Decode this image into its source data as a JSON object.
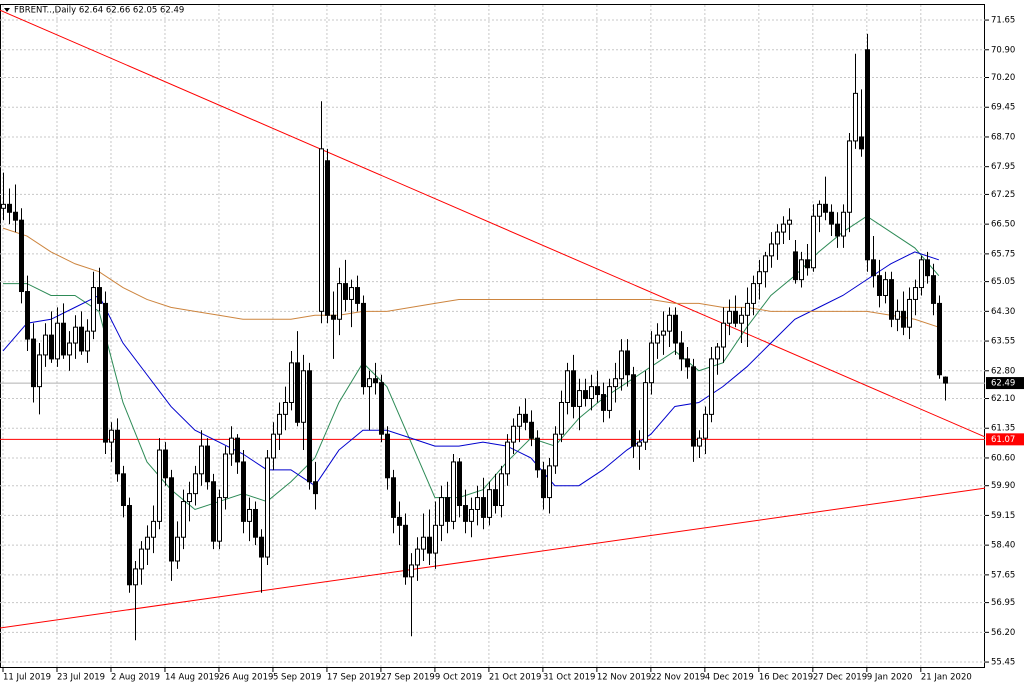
{
  "chart_data": {
    "type": "candlestick",
    "title": "FBRENT..,Daily  62.64 62.66 62.05 62.49",
    "ylim": [
      55.3,
      72.03
    ],
    "yticks": [
      71.65,
      {
        "value": 70.9,
        "label": "70.90"
      },
      {
        "value": 70.2,
        "label": "70.20"
      },
      69.45,
      {
        "value": 68.7,
        "label": "68.70"
      },
      67.95,
      67.25,
      {
        "value": 66.5,
        "label": "66.50"
      },
      65.75,
      65.05,
      {
        "value": 64.3,
        "label": "64.30"
      },
      63.55,
      {
        "value": 62.8,
        "label": "62.80"
      },
      {
        "value": 62.1,
        "label": "62.10"
      },
      61.35,
      {
        "value": 60.6,
        "label": "60.60"
      },
      {
        "value": 59.9,
        "label": "59.90"
      },
      59.15,
      {
        "value": 58.4,
        "label": "58.40"
      },
      57.65,
      56.95,
      {
        "value": 56.2,
        "label": "56.20"
      },
      55.45
    ],
    "xlim": [
      -0.5,
      163.7
    ],
    "xticks": [
      {
        "value": 0,
        "label": "11 Jul 2019"
      },
      {
        "value": 9,
        "label": "23 Jul 2019"
      },
      {
        "value": 18,
        "label": "2 Aug 2019"
      },
      {
        "value": 27,
        "label": "14 Aug 2019"
      },
      {
        "value": 36,
        "label": "26 Aug 2019"
      },
      {
        "value": 45,
        "label": "5 Sep 2019"
      },
      {
        "value": 54,
        "label": "17 Sep 2019"
      },
      {
        "value": 63,
        "label": "27 Sep 2019"
      },
      {
        "value": 72,
        "label": "9 Oct 2019"
      },
      {
        "value": 81,
        "label": "21 Oct 2019"
      },
      {
        "value": 90,
        "label": "31 Oct 2019"
      },
      {
        "value": 99,
        "label": "12 Nov 2019"
      },
      {
        "value": 108,
        "label": "22 Nov 2019"
      },
      {
        "value": 117,
        "label": "4 Dec 2019"
      },
      {
        "value": 126,
        "label": "16 Dec 2019"
      },
      {
        "value": 135,
        "label": "27 Dec 2019"
      },
      {
        "value": 144,
        "label": "9 Jan 2020"
      },
      {
        "value": 153,
        "label": "21 Jan 2020"
      }
    ],
    "grid": true,
    "ohlc": [
      [
        66.9,
        67.8,
        66.6,
        67.0
      ],
      [
        67.0,
        67.4,
        66.5,
        66.8
      ],
      [
        66.8,
        67.5,
        66.3,
        66.6
      ],
      [
        66.6,
        66.9,
        64.5,
        64.8
      ],
      [
        64.8,
        65.2,
        63.3,
        63.6
      ],
      [
        63.6,
        64.0,
        62.0,
        62.4
      ],
      [
        62.4,
        63.5,
        61.7,
        63.2
      ],
      [
        63.2,
        64.0,
        62.9,
        63.7
      ],
      [
        63.7,
        64.3,
        63.0,
        63.1
      ],
      [
        63.1,
        64.4,
        62.9,
        64.0
      ],
      [
        64.0,
        64.5,
        63.1,
        63.2
      ],
      [
        63.2,
        63.8,
        62.8,
        63.5
      ],
      [
        63.5,
        64.2,
        63.1,
        63.9
      ],
      [
        63.9,
        64.3,
        63.2,
        63.3
      ],
      [
        63.3,
        64.1,
        63.0,
        63.8
      ],
      [
        63.8,
        65.3,
        63.6,
        64.9
      ],
      [
        64.9,
        65.4,
        64.3,
        64.5
      ],
      [
        64.5,
        64.8,
        60.7,
        61.0
      ],
      [
        61.0,
        61.5,
        60.5,
        61.3
      ],
      [
        61.3,
        61.6,
        60.0,
        60.2
      ],
      [
        60.2,
        60.4,
        59.1,
        59.4
      ],
      [
        59.4,
        59.6,
        57.2,
        57.4
      ],
      [
        57.4,
        58.0,
        56.0,
        57.8
      ],
      [
        57.8,
        58.5,
        57.4,
        58.3
      ],
      [
        58.3,
        58.9,
        57.9,
        58.6
      ],
      [
        58.6,
        59.4,
        58.2,
        59.0
      ],
      [
        59.0,
        61.1,
        58.8,
        60.8
      ],
      [
        60.8,
        61.0,
        59.9,
        60.1
      ],
      [
        60.1,
        60.3,
        57.5,
        58.0
      ],
      [
        58.0,
        59.0,
        57.8,
        58.6
      ],
      [
        58.6,
        59.8,
        58.3,
        59.5
      ],
      [
        59.5,
        60.0,
        59.0,
        59.7
      ],
      [
        59.7,
        60.4,
        59.4,
        60.2
      ],
      [
        60.2,
        61.3,
        59.9,
        60.9
      ],
      [
        60.9,
        61.1,
        59.8,
        60.0
      ],
      [
        60.0,
        60.2,
        58.3,
        58.5
      ],
      [
        58.5,
        59.8,
        58.3,
        59.6
      ],
      [
        59.6,
        60.9,
        59.3,
        60.7
      ],
      [
        60.7,
        61.4,
        60.4,
        61.1
      ],
      [
        61.1,
        61.2,
        60.2,
        60.5
      ],
      [
        60.5,
        60.8,
        58.7,
        59.0
      ],
      [
        59.0,
        59.6,
        58.5,
        59.3
      ],
      [
        59.3,
        59.5,
        58.4,
        58.6
      ],
      [
        58.6,
        58.8,
        57.2,
        58.1
      ],
      [
        58.1,
        60.8,
        57.9,
        60.6
      ],
      [
        60.6,
        61.5,
        60.3,
        61.2
      ],
      [
        61.2,
        62.0,
        60.8,
        61.7
      ],
      [
        61.7,
        62.4,
        61.3,
        62.0
      ],
      [
        62.0,
        63.3,
        61.8,
        63.0
      ],
      [
        63.0,
        63.8,
        61.4,
        61.5
      ],
      [
        61.5,
        63.2,
        60.8,
        62.8
      ],
      [
        62.8,
        63.0,
        59.8,
        60.0
      ],
      [
        60.0,
        60.5,
        59.3,
        59.7
      ],
      [
        64.3,
        69.6,
        64.0,
        68.4
      ],
      [
        68.1,
        68.4,
        64.0,
        64.2
      ],
      [
        64.2,
        64.8,
        63.1,
        64.1
      ],
      [
        64.1,
        65.4,
        63.7,
        65.0
      ],
      [
        65.0,
        65.6,
        64.3,
        64.6
      ],
      [
        64.6,
        65.1,
        63.9,
        64.9
      ],
      [
        64.9,
        65.2,
        64.3,
        64.5
      ],
      [
        64.5,
        64.7,
        62.2,
        62.4
      ],
      [
        62.4,
        62.8,
        61.3,
        62.6
      ],
      [
        62.6,
        63.0,
        62.2,
        62.5
      ],
      [
        62.5,
        62.7,
        61.0,
        61.2
      ],
      [
        61.2,
        61.4,
        59.8,
        60.1
      ],
      [
        60.1,
        60.3,
        58.7,
        59.1
      ],
      [
        59.1,
        59.5,
        58.4,
        58.9
      ],
      [
        58.9,
        59.2,
        57.4,
        57.6
      ],
      [
        57.6,
        58.2,
        56.1,
        57.9
      ],
      [
        57.9,
        58.6,
        57.5,
        58.3
      ],
      [
        58.3,
        59.2,
        58.0,
        58.6
      ],
      [
        58.6,
        59.3,
        57.9,
        58.2
      ],
      [
        58.2,
        59.5,
        57.8,
        58.9
      ],
      [
        58.9,
        59.9,
        58.5,
        59.6
      ],
      [
        59.6,
        60.0,
        58.7,
        59.0
      ],
      [
        59.0,
        60.7,
        58.8,
        60.5
      ],
      [
        60.5,
        60.6,
        59.1,
        59.4
      ],
      [
        59.4,
        59.8,
        58.7,
        59.0
      ],
      [
        59.0,
        59.6,
        58.6,
        59.3
      ],
      [
        59.3,
        59.9,
        58.9,
        59.6
      ],
      [
        59.6,
        60.1,
        58.8,
        59.1
      ],
      [
        59.1,
        60.0,
        58.9,
        59.8
      ],
      [
        59.8,
        60.2,
        59.2,
        59.4
      ],
      [
        59.4,
        60.4,
        59.1,
        60.2
      ],
      [
        60.2,
        61.2,
        59.9,
        61.0
      ],
      [
        61.0,
        61.6,
        60.7,
        61.4
      ],
      [
        61.4,
        61.9,
        61.0,
        61.7
      ],
      [
        61.7,
        62.1,
        61.3,
        61.5
      ],
      [
        61.5,
        61.8,
        60.9,
        61.1
      ],
      [
        61.1,
        61.3,
        60.1,
        60.3
      ],
      [
        60.3,
        60.5,
        59.3,
        59.6
      ],
      [
        59.6,
        60.6,
        59.2,
        60.4
      ],
      [
        60.4,
        61.4,
        60.2,
        61.2
      ],
      [
        61.2,
        62.3,
        61.0,
        62.0
      ],
      [
        62.0,
        63.0,
        61.7,
        62.8
      ],
      [
        62.8,
        63.2,
        61.6,
        61.9
      ],
      [
        61.9,
        62.6,
        61.3,
        62.3
      ],
      [
        62.3,
        62.6,
        61.9,
        62.1
      ],
      [
        62.1,
        62.7,
        61.8,
        62.4
      ],
      [
        62.4,
        62.8,
        62.0,
        62.2
      ],
      [
        62.2,
        62.5,
        61.5,
        61.8
      ],
      [
        61.8,
        62.6,
        61.6,
        62.4
      ],
      [
        62.4,
        63.0,
        62.0,
        62.6
      ],
      [
        62.6,
        63.6,
        62.3,
        63.3
      ],
      [
        63.3,
        63.6,
        62.4,
        62.7
      ],
      [
        62.7,
        62.9,
        60.6,
        60.9
      ],
      [
        60.9,
        61.3,
        60.3,
        61.0
      ],
      [
        61.0,
        62.8,
        60.8,
        62.5
      ],
      [
        62.5,
        63.8,
        62.2,
        63.5
      ],
      [
        63.5,
        64.0,
        63.1,
        63.7
      ],
      [
        63.7,
        64.3,
        63.2,
        63.8
      ],
      [
        63.8,
        64.4,
        63.4,
        64.2
      ],
      [
        64.2,
        64.4,
        63.2,
        63.5
      ],
      [
        63.5,
        63.8,
        62.8,
        63.1
      ],
      [
        63.1,
        63.4,
        62.6,
        62.9
      ],
      [
        62.9,
        63.1,
        60.5,
        60.9
      ],
      [
        60.9,
        61.3,
        60.6,
        61.1
      ],
      [
        61.1,
        61.9,
        60.7,
        61.7
      ],
      [
        61.7,
        63.4,
        61.5,
        63.1
      ],
      [
        63.1,
        63.5,
        62.7,
        63.4
      ],
      [
        63.4,
        64.4,
        63.0,
        64.0
      ],
      [
        64.0,
        64.6,
        63.7,
        64.3
      ],
      [
        64.3,
        64.7,
        63.9,
        64.0
      ],
      [
        64.0,
        64.4,
        63.5,
        64.2
      ],
      [
        64.2,
        64.9,
        63.4,
        64.5
      ],
      [
        64.5,
        65.2,
        64.2,
        65.0
      ],
      [
        65.0,
        65.6,
        64.6,
        65.3
      ],
      [
        65.3,
        65.8,
        64.9,
        65.7
      ],
      [
        65.7,
        66.3,
        65.4,
        66.0
      ],
      [
        66.0,
        66.5,
        65.6,
        66.3
      ],
      [
        66.3,
        66.7,
        66.0,
        66.5
      ],
      [
        66.5,
        66.9,
        66.1,
        66.6
      ],
      [
        65.8,
        66.1,
        65.0,
        65.1
      ],
      [
        65.1,
        65.8,
        64.9,
        65.6
      ],
      [
        65.6,
        66.0,
        65.2,
        65.4
      ],
      [
        65.4,
        67.0,
        65.3,
        66.7
      ],
      [
        66.7,
        67.1,
        66.3,
        67.0
      ],
      [
        67.0,
        67.7,
        66.6,
        66.8
      ],
      [
        66.8,
        67.0,
        66.2,
        66.5
      ],
      [
        66.5,
        66.8,
        65.9,
        66.2
      ],
      [
        66.2,
        67.0,
        65.9,
        66.8
      ],
      [
        66.8,
        68.8,
        66.3,
        68.6
      ],
      [
        68.6,
        70.8,
        68.4,
        69.8
      ],
      [
        68.7,
        69.9,
        68.2,
        68.4
      ],
      [
        70.9,
        71.3,
        65.3,
        65.6
      ],
      [
        65.6,
        66.2,
        64.9,
        65.2
      ],
      [
        65.2,
        65.6,
        64.4,
        64.7
      ],
      [
        64.7,
        65.3,
        64.5,
        65.1
      ],
      [
        65.1,
        65.3,
        63.9,
        64.1
      ],
      [
        64.1,
        64.6,
        63.8,
        64.3
      ],
      [
        64.3,
        64.8,
        63.7,
        63.9
      ],
      [
        63.9,
        64.9,
        63.6,
        64.6
      ],
      [
        64.6,
        65.1,
        64.2,
        64.9
      ],
      [
        64.9,
        65.7,
        64.7,
        65.6
      ],
      [
        65.6,
        65.8,
        65.0,
        65.2
      ],
      [
        65.2,
        65.5,
        64.2,
        64.5
      ],
      [
        64.5,
        64.7,
        62.6,
        62.7
      ],
      [
        62.64,
        62.66,
        62.05,
        62.49
      ]
    ],
    "x": [
      0,
      4,
      8,
      12,
      16,
      20,
      24,
      28,
      32,
      36,
      40,
      44,
      48,
      52,
      56,
      60,
      64,
      68,
      72,
      76,
      80,
      84,
      88,
      92,
      96,
      100,
      104,
      108,
      112,
      116,
      120,
      124,
      128,
      132,
      136,
      140,
      144,
      148,
      152,
      156
    ],
    "series": [
      {
        "color": "#2e8b57",
        "values": [
          65.0,
          65.0,
          64.7,
          64.7,
          64.3,
          62.0,
          60.5,
          59.8,
          59.3,
          59.5,
          59.7,
          59.5,
          60.0,
          60.6,
          62.0,
          63.0,
          62.4,
          61.0,
          59.6,
          59.6,
          59.8,
          60.5,
          61.1,
          60.9,
          61.6,
          62.1,
          62.5,
          62.9,
          63.3,
          62.8,
          63.0,
          63.9,
          64.7,
          65.2,
          65.8,
          66.3,
          66.7,
          66.3,
          65.9,
          65.2
        ]
      },
      {
        "color": "#0000cd",
        "values": [
          63.3,
          64.0,
          64.1,
          64.4,
          64.7,
          63.5,
          62.7,
          61.9,
          61.3,
          61.0,
          60.7,
          60.3,
          60.3,
          59.9,
          60.8,
          61.3,
          61.3,
          61.1,
          60.9,
          60.9,
          61.0,
          60.9,
          60.6,
          59.9,
          59.9,
          60.3,
          60.8,
          61.2,
          61.9,
          62.0,
          62.4,
          62.9,
          63.5,
          64.1,
          64.4,
          64.7,
          65.1,
          65.5,
          65.8,
          65.6
        ]
      },
      {
        "color": "#cd853f",
        "values": [
          66.4,
          66.2,
          65.8,
          65.5,
          65.3,
          64.9,
          64.6,
          64.4,
          64.3,
          64.2,
          64.1,
          64.1,
          64.1,
          64.2,
          64.2,
          64.3,
          64.3,
          64.4,
          64.5,
          64.6,
          64.6,
          64.6,
          64.6,
          64.6,
          64.6,
          64.6,
          64.6,
          64.6,
          64.5,
          64.5,
          64.4,
          64.4,
          64.3,
          64.3,
          64.3,
          64.3,
          64.3,
          64.2,
          64.1,
          63.9
        ]
      }
    ],
    "trendlines": [
      {
        "color": "#ff0000",
        "points": [
          [
            -0.5,
            71.9
          ],
          [
            163.7,
            61.13
          ]
        ]
      },
      {
        "color": "#ff0000",
        "points": [
          [
            -0.5,
            56.31
          ],
          [
            163.7,
            59.84
          ]
        ]
      }
    ],
    "hline": {
      "value": 61.07,
      "label": "61.07",
      "color": "#ff0000"
    },
    "last_price": {
      "value": 62.49,
      "label": "62.49"
    }
  }
}
